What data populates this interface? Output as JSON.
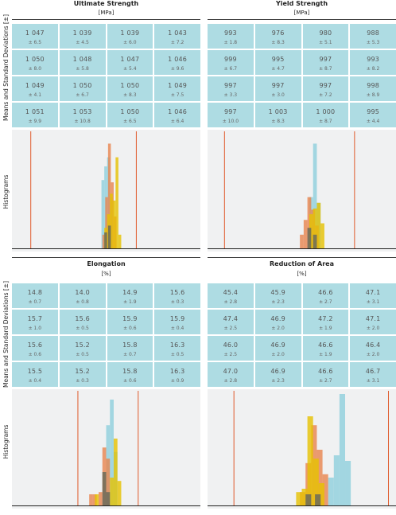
{
  "labels": {
    "means_sd": "Means and Standard Deviations [±]",
    "histograms": "Histograms"
  },
  "colors": {
    "cell": "#aedce3",
    "hist_bg": "#f0f1f2",
    "limit_line": "#e05a2b",
    "series_blue": "#8fcfdc",
    "series_orange": "#e8844e",
    "series_yellow": "#e6c200",
    "series_gray": "#6b6b5b"
  },
  "chart_data": [
    {
      "type": "table",
      "title": "Ultimate Strength",
      "unit": "[MPa]",
      "cells": [
        [
          {
            "mean": "1 047",
            "sd": "± 6.5"
          },
          {
            "mean": "1 039",
            "sd": "± 4.5"
          },
          {
            "mean": "1 039",
            "sd": "± 6.0"
          },
          {
            "mean": "1 043",
            "sd": "± 7.2"
          }
        ],
        [
          {
            "mean": "1 050",
            "sd": "± 8.0"
          },
          {
            "mean": "1 048",
            "sd": "± 5.8"
          },
          {
            "mean": "1 047",
            "sd": "± 5.4"
          },
          {
            "mean": "1 046",
            "sd": "± 9.6"
          }
        ],
        [
          {
            "mean": "1 049",
            "sd": "± 4.1"
          },
          {
            "mean": "1 050",
            "sd": "± 6.7"
          },
          {
            "mean": "1 050",
            "sd": "± 8.3"
          },
          {
            "mean": "1 049",
            "sd": "± 7.5"
          }
        ],
        [
          {
            "mean": "1 051",
            "sd": "± 9.9"
          },
          {
            "mean": "1 053",
            "sd": "± 10.8"
          },
          {
            "mean": "1 050",
            "sd": "± 6.5"
          },
          {
            "mean": "1 046",
            "sd": "± 6.4"
          }
        ]
      ],
      "histogram": {
        "type": "bar",
        "xlim": [
          0,
          100
        ],
        "limits": [
          10,
          66
        ],
        "series": [
          {
            "color": "blue",
            "bins": [
              [
                47.5,
                49,
                60
              ],
              [
                49,
                50.5,
                72
              ],
              [
                50.5,
                52,
                80
              ],
              [
                52,
                53.5,
                45
              ]
            ]
          },
          {
            "color": "orange",
            "bins": [
              [
                48,
                49.5,
                12
              ],
              [
                49.5,
                51,
                45
              ],
              [
                51,
                52.5,
                92
              ],
              [
                52.5,
                54,
                58
              ],
              [
                54,
                55.5,
                28
              ]
            ]
          },
          {
            "color": "yellow",
            "bins": [
              [
                49,
                50.5,
                18
              ],
              [
                50.5,
                52,
                30
              ],
              [
                52,
                53.5,
                48
              ],
              [
                53.5,
                55,
                42
              ],
              [
                55,
                56.5,
                80
              ],
              [
                56.5,
                58,
                12
              ]
            ]
          },
          {
            "color": "gray",
            "bins": [
              [
                49,
                50.5,
                14
              ],
              [
                51,
                52.5,
                20
              ]
            ]
          }
        ]
      }
    },
    {
      "type": "table",
      "title": "Yield Strength",
      "unit": "[MPa]",
      "cells": [
        [
          {
            "mean": "993",
            "sd": "± 1.8"
          },
          {
            "mean": "976",
            "sd": "± 8.3"
          },
          {
            "mean": "980",
            "sd": "± 5.1"
          },
          {
            "mean": "988",
            "sd": "± 5.3"
          }
        ],
        [
          {
            "mean": "999",
            "sd": "± 6.7"
          },
          {
            "mean": "995",
            "sd": "± 4.7"
          },
          {
            "mean": "997",
            "sd": "± 8.7"
          },
          {
            "mean": "993",
            "sd": "± 8.2"
          }
        ],
        [
          {
            "mean": "997",
            "sd": "± 3.3"
          },
          {
            "mean": "997",
            "sd": "± 3.0"
          },
          {
            "mean": "997",
            "sd": "± 7.2"
          },
          {
            "mean": "998",
            "sd": "± 8.9"
          }
        ],
        [
          {
            "mean": "997",
            "sd": "± 10.0"
          },
          {
            "mean": "1 003",
            "sd": "± 8.3"
          },
          {
            "mean": "1 000",
            "sd": "± 8.7"
          },
          {
            "mean": "995",
            "sd": "± 4.4"
          }
        ]
      ],
      "histogram": {
        "type": "bar",
        "xlim": [
          0,
          100
        ],
        "limits": [
          9,
          78
        ],
        "series": [
          {
            "color": "blue",
            "bins": [
              [
                54,
                56,
                45
              ],
              [
                56,
                58,
                92
              ],
              [
                58,
                60,
                40
              ]
            ]
          },
          {
            "color": "orange",
            "bins": [
              [
                49,
                51,
                12
              ],
              [
                51,
                53,
                25
              ],
              [
                53,
                55,
                45
              ],
              [
                55,
                57,
                34
              ],
              [
                57,
                59,
                20
              ]
            ]
          },
          {
            "color": "yellow",
            "bins": [
              [
                54,
                56,
                30
              ],
              [
                56,
                58,
                35
              ],
              [
                58,
                60,
                40
              ],
              [
                60,
                62,
                22
              ]
            ]
          },
          {
            "color": "gray",
            "bins": [
              [
                53,
                55,
                18
              ],
              [
                56,
                58,
                12
              ]
            ]
          }
        ]
      }
    },
    {
      "type": "table",
      "title": "Elongation",
      "unit": "[%]",
      "cells": [
        [
          {
            "mean": "14.8",
            "sd": "± 0.7"
          },
          {
            "mean": "14.0",
            "sd": "± 0.8"
          },
          {
            "mean": "14.9",
            "sd": "± 1.9"
          },
          {
            "mean": "15.6",
            "sd": "± 0.3"
          }
        ],
        [
          {
            "mean": "15.7",
            "sd": "± 1.0"
          },
          {
            "mean": "15.6",
            "sd": "± 0.5"
          },
          {
            "mean": "15.9",
            "sd": "± 0.6"
          },
          {
            "mean": "15.9",
            "sd": "± 0.4"
          }
        ],
        [
          {
            "mean": "15.6",
            "sd": "± 0.6"
          },
          {
            "mean": "15.2",
            "sd": "± 0.5"
          },
          {
            "mean": "15.8",
            "sd": "± 0.7"
          },
          {
            "mean": "16.3",
            "sd": "± 0.5"
          }
        ],
        [
          {
            "mean": "15.5",
            "sd": "± 0.4"
          },
          {
            "mean": "15.2",
            "sd": "± 0.3"
          },
          {
            "mean": "15.8",
            "sd": "± 0.6"
          },
          {
            "mean": "16.3",
            "sd": "± 0.9"
          }
        ]
      ],
      "histogram": {
        "type": "bar",
        "xlim": [
          0,
          100
        ],
        "limits": [
          35,
          67
        ],
        "series": [
          {
            "color": "blue",
            "bins": [
              [
                50,
                52,
                72
              ],
              [
                52,
                54,
                95
              ],
              [
                54,
                56,
                48
              ]
            ]
          },
          {
            "color": "orange",
            "bins": [
              [
                41,
                43,
                10
              ],
              [
                43,
                45,
                10
              ],
              [
                46,
                48,
                12
              ],
              [
                48,
                50,
                52
              ],
              [
                50,
                52,
                42
              ]
            ]
          },
          {
            "color": "yellow",
            "bins": [
              [
                44,
                46,
                10
              ],
              [
                52,
                54,
                25
              ],
              [
                54,
                56,
                60
              ],
              [
                56,
                58,
                22
              ]
            ]
          },
          {
            "color": "gray",
            "bins": [
              [
                48,
                50,
                30
              ],
              [
                50,
                52,
                12
              ]
            ]
          }
        ]
      }
    },
    {
      "type": "table",
      "title": "Reduction of Area",
      "unit": "[%]",
      "cells": [
        [
          {
            "mean": "45.4",
            "sd": "± 2.8"
          },
          {
            "mean": "45.9",
            "sd": "± 2.3"
          },
          {
            "mean": "46.6",
            "sd": "± 2.7"
          },
          {
            "mean": "47.1",
            "sd": "± 3.1"
          }
        ],
        [
          {
            "mean": "47.4",
            "sd": "± 2.5"
          },
          {
            "mean": "46.9",
            "sd": "± 2.0"
          },
          {
            "mean": "47.2",
            "sd": "± 1.9"
          },
          {
            "mean": "47.1",
            "sd": "± 2.0"
          }
        ],
        [
          {
            "mean": "46.0",
            "sd": "± 2.5"
          },
          {
            "mean": "46.9",
            "sd": "± 2.0"
          },
          {
            "mean": "46.6",
            "sd": "± 1.9"
          },
          {
            "mean": "46.4",
            "sd": "± 2.0"
          }
        ],
        [
          {
            "mean": "47.0",
            "sd": "± 2.8"
          },
          {
            "mean": "46.9",
            "sd": "± 2.3"
          },
          {
            "mean": "46.6",
            "sd": "± 2.7"
          },
          {
            "mean": "46.7",
            "sd": "± 3.1"
          }
        ]
      ],
      "histogram": {
        "type": "bar",
        "xlim": [
          0,
          100
        ],
        "limits": [
          14,
          96
        ],
        "series": [
          {
            "color": "blue",
            "bins": [
              [
                64,
                67,
                25
              ],
              [
                67,
                70,
                45
              ],
              [
                70,
                73,
                100
              ],
              [
                73,
                76,
                40
              ]
            ]
          },
          {
            "color": "orange",
            "bins": [
              [
                49,
                52,
                12
              ],
              [
                52,
                55,
                38
              ],
              [
                55,
                58,
                72
              ],
              [
                58,
                61,
                50
              ],
              [
                61,
                64,
                28
              ]
            ]
          },
          {
            "color": "yellow",
            "bins": [
              [
                47,
                50,
                12
              ],
              [
                50,
                53,
                15
              ],
              [
                53,
                56,
                80
              ],
              [
                56,
                59,
                42
              ],
              [
                59,
                62,
                20
              ]
            ]
          },
          {
            "color": "gray",
            "bins": [
              [
                52,
                55,
                10
              ],
              [
                57,
                60,
                10
              ]
            ]
          }
        ]
      }
    }
  ]
}
